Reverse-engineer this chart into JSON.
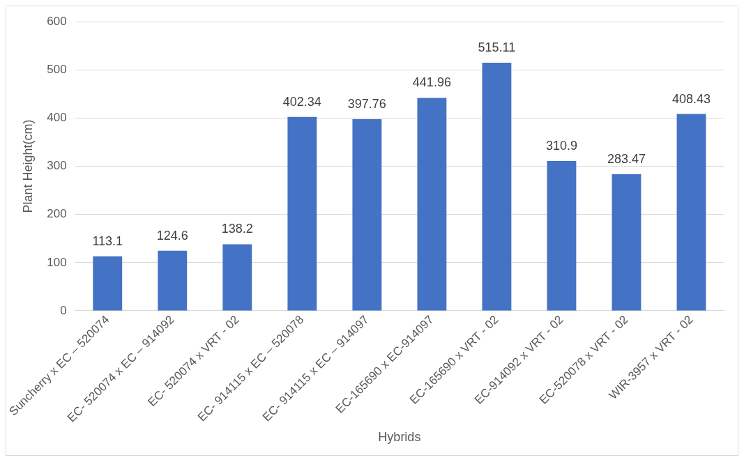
{
  "chart_data": {
    "type": "bar",
    "xlabel": "Hybrids",
    "ylabel": "Plant Height(cm)",
    "categories": [
      "Suncherry x EC – 520074",
      "EC- 520074 x EC – 914092",
      "EC- 520074 x VRT - 02",
      "EC- 914115 x EC – 520078",
      "EC- 914115 x EC – 914097",
      "EC-165690 x EC-914097",
      "EC-165690 x VRT - 02",
      "EC-914092 x VRT - 02",
      "EC-520078 x VRT - 02",
      "WIR-3957 x VRT - 02"
    ],
    "values": [
      113.1,
      124.6,
      138.2,
      402.34,
      397.76,
      441.96,
      515.11,
      310.9,
      283.47,
      408.43
    ],
    "color": "#4472c4",
    "ylim": [
      0,
      600
    ],
    "yticks": [
      0,
      100,
      200,
      300,
      400,
      500,
      600
    ],
    "grid": "y",
    "data_labels": true
  }
}
